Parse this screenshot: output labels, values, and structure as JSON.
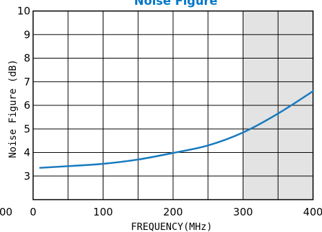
{
  "chart_data": {
    "type": "line",
    "title": "Noise Figure",
    "title_color": "#0077c8",
    "xlabel": "FREQUENCY(MHz)",
    "ylabel": "Noise Figure (dB)",
    "xlim": [
      0,
      400
    ],
    "ylim": [
      2,
      10
    ],
    "x_ticks": [
      0,
      100,
      200,
      300,
      400
    ],
    "x_tick_labels": [
      "0",
      "100",
      "200",
      "300",
      "400"
    ],
    "x_extra_tick_label": "00",
    "y_ticks": [
      3,
      4,
      5,
      6,
      7,
      8,
      9,
      10
    ],
    "y_tick_labels": [
      "3",
      "4",
      "5",
      "6",
      "7",
      "8",
      "9",
      "10"
    ],
    "x_grid": [
      50,
      100,
      150,
      200,
      250,
      300,
      350
    ],
    "y_grid": [
      3,
      4,
      5,
      6,
      7,
      8,
      9
    ],
    "shaded_region": {
      "x_range": [
        300,
        400
      ],
      "color": "#e3e3e3"
    },
    "series": [
      {
        "color": "#1a7bbf",
        "x": [
          10,
          50,
          100,
          150,
          200,
          250,
          300,
          350,
          400
        ],
        "y": [
          3.35,
          3.42,
          3.52,
          3.7,
          3.98,
          4.3,
          4.85,
          5.65,
          6.6
        ]
      }
    ],
    "grid": true
  }
}
